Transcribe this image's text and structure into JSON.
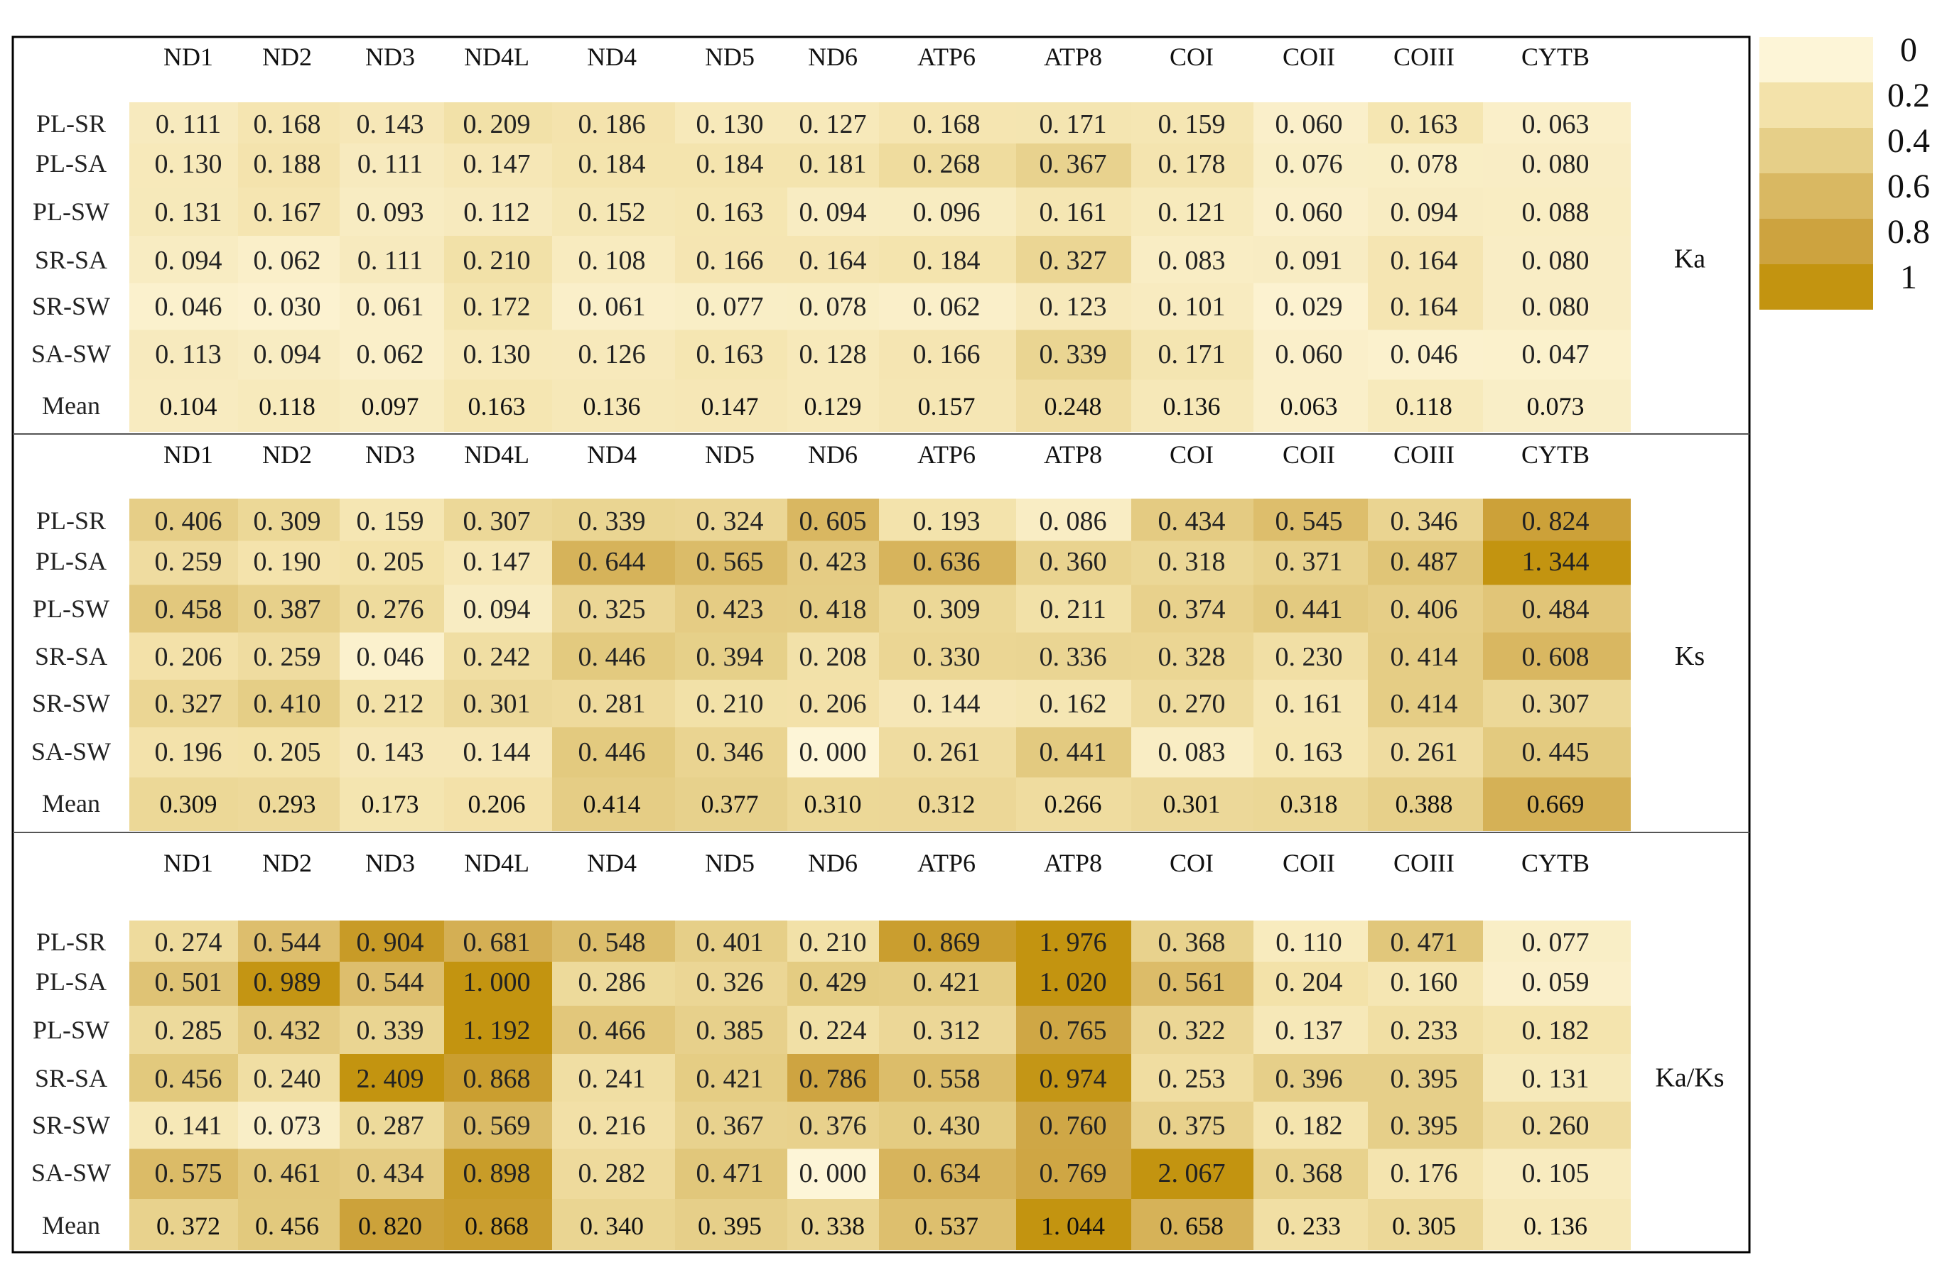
{
  "chart_data": {
    "type": "heatmap",
    "columns": [
      "ND1",
      "ND2",
      "ND3",
      "ND4L",
      "ND4",
      "ND5",
      "ND6",
      "ATP6",
      "ATP8",
      "COI",
      "COII",
      "COIII",
      "CYTB"
    ],
    "rows": [
      "PL-SR",
      "PL-SA",
      "PL-SW",
      "SR-SA",
      "SR-SW",
      "SA-SW",
      "Mean"
    ],
    "color_scale": {
      "range": [
        0,
        1
      ],
      "ticks": [
        "0",
        "0.2",
        "0.4",
        "0.6",
        "0.8",
        "1"
      ],
      "colors": [
        "#fdf5d7",
        "#f3e2aa",
        "#e6cf88",
        "#d9b862",
        "#cda33f",
        "#c39410"
      ]
    },
    "panels": [
      {
        "title": "Ka",
        "values": [
          [
            "0. 111",
            "0. 168",
            "0. 143",
            "0. 209",
            "0. 186",
            "0. 130",
            "0. 127",
            "0. 168",
            "0. 171",
            "0. 159",
            "0. 060",
            "0. 163",
            "0. 063"
          ],
          [
            "0. 130",
            "0. 188",
            "0. 111",
            "0. 147",
            "0. 184",
            "0. 184",
            "0. 181",
            "0. 268",
            "0. 367",
            "0. 178",
            "0. 076",
            "0. 078",
            "0. 080"
          ],
          [
            "0. 131",
            "0. 167",
            "0. 093",
            "0. 112",
            "0. 152",
            "0. 163",
            "0. 094",
            "0. 096",
            "0. 161",
            "0. 121",
            "0. 060",
            "0. 094",
            "0. 088"
          ],
          [
            "0. 094",
            "0. 062",
            "0. 111",
            "0. 210",
            "0. 108",
            "0. 166",
            "0. 164",
            "0. 184",
            "0. 327",
            "0. 083",
            "0. 091",
            "0. 164",
            "0. 080"
          ],
          [
            "0. 046",
            "0. 030",
            "0. 061",
            "0. 172",
            "0. 061",
            "0. 077",
            "0. 078",
            "0. 062",
            "0. 123",
            "0. 101",
            "0. 029",
            "0. 164",
            "0. 080"
          ],
          [
            "0. 113",
            "0. 094",
            "0. 062",
            "0. 130",
            "0. 126",
            "0. 163",
            "0. 128",
            "0. 166",
            "0. 339",
            "0. 171",
            "0. 060",
            "0. 046",
            "0. 047"
          ],
          [
            "0.104",
            "0.118",
            "0.097",
            "0.163",
            "0.136",
            "0.147",
            "0.129",
            "0.157",
            "0.248",
            "0.136",
            "0.063",
            "0.118",
            "0.073"
          ]
        ]
      },
      {
        "title": "Ks",
        "values": [
          [
            "0. 406",
            "0. 309",
            "0. 159",
            "0. 307",
            "0. 339",
            "0. 324",
            "0. 605",
            "0. 193",
            "0. 086",
            "0. 434",
            "0. 545",
            "0. 346",
            "0. 824"
          ],
          [
            "0. 259",
            "0. 190",
            "0. 205",
            "0. 147",
            "0. 644",
            "0. 565",
            "0. 423",
            "0. 636",
            "0. 360",
            "0. 318",
            "0. 371",
            "0. 487",
            "1. 344"
          ],
          [
            "0. 458",
            "0. 387",
            "0. 276",
            "0. 094",
            "0. 325",
            "0. 423",
            "0. 418",
            "0. 309",
            "0. 211",
            "0. 374",
            "0. 441",
            "0. 406",
            "0. 484"
          ],
          [
            "0. 206",
            "0. 259",
            "0. 046",
            "0. 242",
            "0. 446",
            "0. 394",
            "0. 208",
            "0. 330",
            "0. 336",
            "0. 328",
            "0. 230",
            "0. 414",
            "0. 608"
          ],
          [
            "0. 327",
            "0. 410",
            "0. 212",
            "0. 301",
            "0. 281",
            "0. 210",
            "0. 206",
            "0. 144",
            "0. 162",
            "0. 270",
            "0. 161",
            "0. 414",
            "0. 307"
          ],
          [
            "0. 196",
            "0. 205",
            "0. 143",
            "0. 144",
            "0. 446",
            "0. 346",
            "0. 000",
            "0. 261",
            "0. 441",
            "0. 083",
            "0. 163",
            "0. 261",
            "0. 445"
          ],
          [
            "0.309",
            "0.293",
            "0.173",
            "0.206",
            "0.414",
            "0.377",
            "0.310",
            "0.312",
            "0.266",
            "0.301",
            "0.318",
            "0.388",
            "0.669"
          ]
        ]
      },
      {
        "title": "Ka/Ks",
        "values": [
          [
            "0. 274",
            "0. 544",
            "0. 904",
            "0. 681",
            "0. 548",
            "0. 401",
            "0. 210",
            "0. 869",
            "1. 976",
            "0. 368",
            "0. 110",
            "0. 471",
            "0. 077"
          ],
          [
            "0. 501",
            "0. 989",
            "0. 544",
            "1. 000",
            "0. 286",
            "0. 326",
            "0. 429",
            "0. 421",
            "1. 020",
            "0. 561",
            "0. 204",
            "0. 160",
            "0. 059"
          ],
          [
            "0. 285",
            "0. 432",
            "0. 339",
            "1. 192",
            "0. 466",
            "0. 385",
            "0. 224",
            "0. 312",
            "0. 765",
            "0. 322",
            "0. 137",
            "0. 233",
            "0. 182"
          ],
          [
            "0. 456",
            "0. 240",
            "2. 409",
            "0. 868",
            "0. 241",
            "0. 421",
            "0. 786",
            "0. 558",
            "0. 974",
            "0. 253",
            "0. 396",
            "0. 395",
            "0. 131"
          ],
          [
            "0. 141",
            "0. 073",
            "0. 287",
            "0. 569",
            "0. 216",
            "0. 367",
            "0. 376",
            "0. 430",
            "0. 760",
            "0. 375",
            "0. 182",
            "0. 395",
            "0. 260"
          ],
          [
            "0. 575",
            "0. 461",
            "0. 434",
            "0. 898",
            "0. 282",
            "0. 471",
            "0. 000",
            "0. 634",
            "0. 769",
            "2. 067",
            "0. 368",
            "0. 176",
            "0. 105"
          ],
          [
            "0. 372",
            "0. 456",
            "0. 820",
            "0. 868",
            "0. 340",
            "0. 395",
            "0. 338",
            "0. 537",
            "1. 044",
            "0. 658",
            "0. 233",
            "0. 305",
            "0. 136"
          ]
        ]
      }
    ]
  }
}
